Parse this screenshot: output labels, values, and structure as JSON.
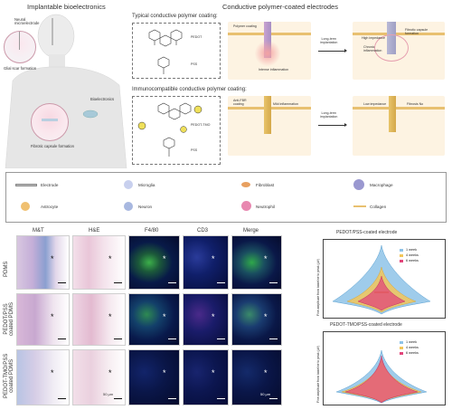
{
  "headers": {
    "left": "Implantable bioelectronics",
    "right": "Conductive polymer-coated electrodes"
  },
  "figure_a": {
    "neural_label": "Neural\nmicroelectrode",
    "glial_label": "Glial scar formation",
    "bioelectronics_label": "Bioelectronics",
    "fibrotic_label": "Fibrotic capsule formation"
  },
  "typical": {
    "title": "Typical conductive polymer coating:",
    "pedot": "PEDOT",
    "pss": "PSS",
    "polymer_coating": "Polymer coating",
    "intense": "Intense inflammation",
    "long_term": "Long-term\nimplantation",
    "high_impedance": "High impedance",
    "fibrotic_capsule": "Fibrotic capsule\nformation",
    "chronic": "Chronic\ninflammation"
  },
  "immuno": {
    "title": "Immunocompatible conductive polymer coating:",
    "pedot_tmo": "PEDOT-TMO",
    "pss": "PSS",
    "anti_fbr": "Anti-FBR\ncoating",
    "mild": "Mild inflammation",
    "long_term": "Long-term\nimplantation",
    "low_impedance": "Low impedance",
    "fibrosis_no": "Fibrosis No"
  },
  "legend": {
    "items": [
      "Electrode",
      "Microglia",
      "Fibroblast",
      "Macrophage",
      "Astrocyte",
      "Neuron",
      "Neutrophil",
      "Collagen"
    ],
    "colors": [
      "#bbbbbb",
      "#9aa8d8",
      "#e8a060",
      "#7a78c0",
      "#e8b060",
      "#7890c8",
      "#d868a0",
      "#e8c070"
    ]
  },
  "micro": {
    "columns": [
      "M&T",
      "H&E",
      "F4/80",
      "CD3",
      "Merge"
    ],
    "rows": [
      "PDMS",
      "PEDOT/PSS\ncoated PDMS",
      "PEDOT-TMO/PSS\ncoated PDMS"
    ],
    "asterisk": "*",
    "scale_label": "50 μm"
  },
  "chart_data": [
    {
      "type": "violin",
      "title": "PEDOT/PSS-coated electrode",
      "ylabel": "Fine amplitude from baseline to peak (μV)",
      "series": [
        {
          "name": "1 week",
          "color": "#8ec3e8"
        },
        {
          "name": "4 weeks",
          "color": "#f2c65a"
        },
        {
          "name": "6 weeks",
          "color": "#e2457a"
        }
      ]
    },
    {
      "type": "violin",
      "title": "PEDOT-TMO/PSS-coated electrode",
      "ylabel": "Fine amplitude from baseline to peak (μV)",
      "series": [
        {
          "name": "1 week",
          "color": "#8ec3e8"
        },
        {
          "name": "4 weeks",
          "color": "#f2c65a"
        },
        {
          "name": "6 weeks",
          "color": "#e2457a"
        }
      ]
    }
  ]
}
